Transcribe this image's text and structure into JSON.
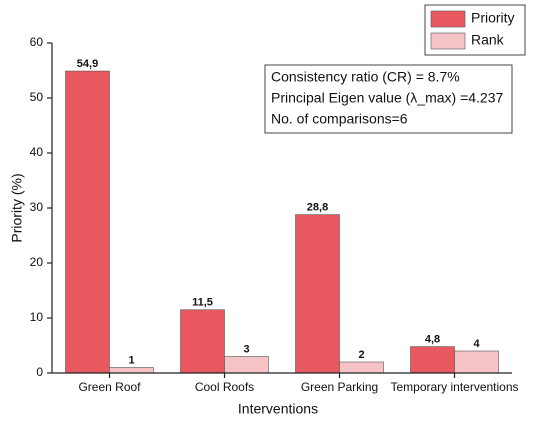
{
  "chart_data": {
    "type": "bar",
    "categories": [
      "Green Roof",
      "Cool Roofs",
      "Green Parking",
      "Temporary interventions"
    ],
    "series": [
      {
        "name": "Priority",
        "color": "#e9585e",
        "values": [
          54.9,
          11.5,
          28.8,
          4.8
        ],
        "value_labels": [
          "54,9",
          "11,5",
          "28,8",
          "4,8"
        ]
      },
      {
        "name": "Rank",
        "color": "#f6c3c6",
        "values": [
          1,
          3,
          2,
          4
        ]
      }
    ],
    "ylim": [
      0,
      60
    ],
    "yticks": [
      0,
      10,
      20,
      30,
      40,
      50,
      60
    ],
    "x_label": "Interventions",
    "y_label": "Priority (%)",
    "annotations": [
      "Consistency ratio (CR) = 8.7%",
      "Principal Eigen value (λ_max) =4.237",
      "No. of comparisons=6"
    ],
    "legend": "upper right",
    "grid": false
  }
}
